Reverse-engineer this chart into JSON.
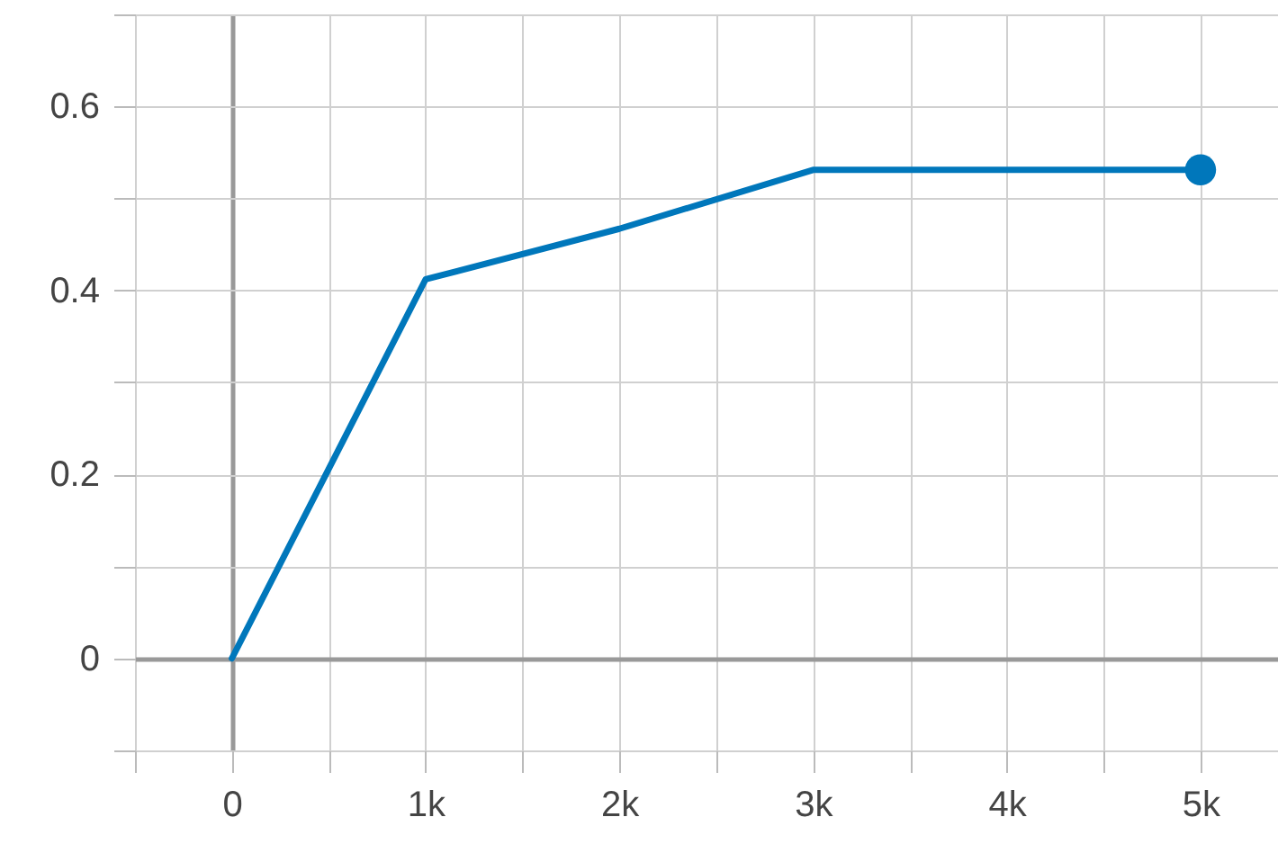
{
  "chart_data": {
    "type": "line",
    "x": [
      0,
      1000,
      2000,
      3000,
      5000
    ],
    "series": [
      {
        "color": "#0077bb",
        "values": [
          0,
          0.412,
          0.467,
          0.531,
          0.531
        ]
      },
      {
        "type": "scatter",
        "color": "#0077bb",
        "x": [
          5000
        ],
        "values": [
          0.531
        ]
      }
    ],
    "xlim": [
      -500,
      5400
    ],
    "ylim": [
      -0.1,
      0.7
    ],
    "xticks": [
      {
        "value": -500,
        "label": null
      },
      0,
      {
        "value": 500,
        "label": null
      },
      {
        "value": 1000,
        "label": "1k"
      },
      {
        "value": 1500,
        "label": null
      },
      {
        "value": 2000,
        "label": "2k"
      },
      {
        "value": 2500,
        "label": null
      },
      {
        "value": 3000,
        "label": "3k"
      },
      {
        "value": 3500,
        "label": null
      },
      {
        "value": 4000,
        "label": "4k"
      },
      {
        "value": 4500,
        "label": null
      },
      {
        "value": 5000,
        "label": "5k"
      }
    ],
    "yticks": [
      {
        "value": -0.1,
        "label": null
      },
      0,
      {
        "value": 0.1,
        "label": null
      },
      0.2,
      {
        "value": 0.3,
        "label": null
      },
      0.4,
      {
        "value": 0.5,
        "label": null
      },
      0.6,
      {
        "value": 0.7,
        "label": null
      }
    ],
    "grid": true,
    "line_style": "solid"
  }
}
